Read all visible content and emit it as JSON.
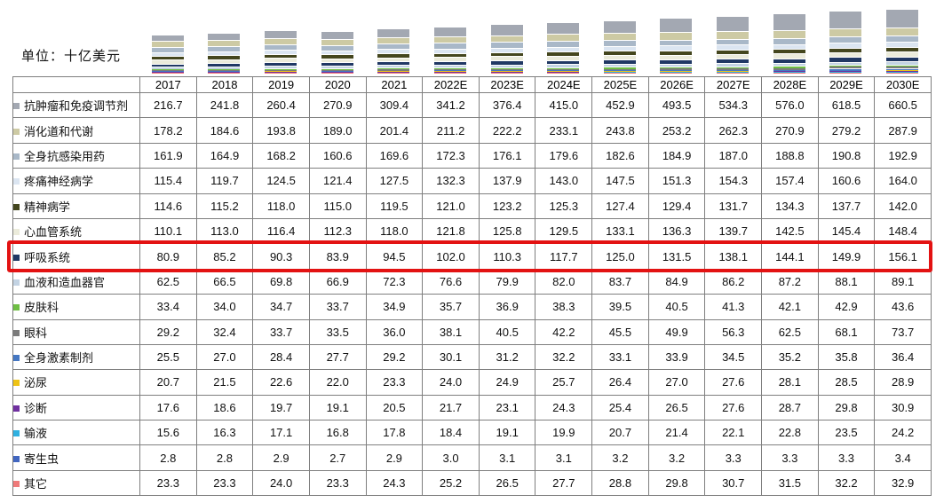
{
  "unit_label": "单位：十亿美元",
  "highlight": {
    "row": "呼吸系统",
    "color": "#e31212"
  },
  "chart_data": {
    "type": "table",
    "subtype": "data-table-with-mini-stacked-bar-chart",
    "title": "",
    "unit": "十亿美元",
    "value_format": "one-decimal",
    "legend_position": "row-labels",
    "columns": [
      "2017",
      "2018",
      "2019",
      "2020",
      "2021",
      "2022E",
      "2023E",
      "2024E",
      "2025E",
      "2026E",
      "2027E",
      "2028E",
      "2029E",
      "2030E"
    ],
    "series": [
      {
        "name": "抗肿瘤和免疫调节剂",
        "color": "#a3a8b2",
        "values": [
          216.7,
          241.8,
          260.4,
          270.9,
          309.4,
          341.2,
          376.4,
          415.0,
          452.9,
          493.5,
          534.3,
          576.0,
          618.5,
          660.5
        ]
      },
      {
        "name": "消化道和代谢",
        "color": "#cdcaa4",
        "values": [
          178.2,
          184.6,
          193.8,
          189.0,
          201.4,
          211.2,
          222.2,
          233.1,
          243.8,
          253.2,
          262.3,
          270.9,
          279.2,
          287.9
        ]
      },
      {
        "name": "全身抗感染用药",
        "color": "#a9b8c8",
        "values": [
          161.9,
          164.9,
          168.2,
          160.6,
          169.6,
          172.3,
          176.1,
          179.6,
          182.6,
          184.9,
          187.0,
          188.8,
          190.8,
          192.9
        ]
      },
      {
        "name": "疼痛神经病学",
        "color": "#dbe5f1",
        "values": [
          115.4,
          119.7,
          124.5,
          121.4,
          127.5,
          132.3,
          137.9,
          143.0,
          147.5,
          151.3,
          154.3,
          157.4,
          160.6,
          164.0
        ]
      },
      {
        "name": "精神病学",
        "color": "#44461e",
        "values": [
          114.6,
          115.2,
          118.0,
          115.0,
          119.5,
          121.0,
          123.2,
          125.3,
          127.4,
          129.4,
          131.7,
          134.3,
          137.7,
          142.0
        ]
      },
      {
        "name": "心血管系统",
        "color": "#ebebdb",
        "values": [
          110.1,
          113.0,
          116.4,
          112.3,
          118.0,
          121.8,
          125.8,
          129.5,
          133.1,
          136.3,
          139.7,
          142.5,
          145.4,
          148.4
        ]
      },
      {
        "name": "呼吸系统",
        "color": "#203864",
        "highlighted": true,
        "values": [
          80.9,
          85.2,
          90.3,
          83.9,
          94.5,
          102.0,
          110.3,
          117.7,
          125.0,
          131.5,
          138.1,
          144.1,
          149.9,
          156.1
        ]
      },
      {
        "name": "血液和造血器官",
        "color": "#c3d3e3",
        "values": [
          62.5,
          66.5,
          69.8,
          66.9,
          72.3,
          76.6,
          79.9,
          82.0,
          83.7,
          84.9,
          86.2,
          87.2,
          88.1,
          89.1
        ]
      },
      {
        "name": "皮肤科",
        "color": "#6fbf44",
        "values": [
          33.4,
          34.0,
          34.7,
          33.7,
          34.9,
          35.7,
          36.9,
          38.3,
          39.5,
          40.5,
          41.3,
          42.1,
          42.9,
          43.6
        ]
      },
      {
        "name": "眼科",
        "color": "#7b7b7b",
        "values": [
          29.2,
          32.4,
          33.7,
          33.5,
          36.0,
          38.1,
          40.5,
          42.2,
          45.5,
          49.9,
          56.3,
          62.5,
          68.1,
          73.7
        ]
      },
      {
        "name": "全身激素制剂",
        "color": "#4577c2",
        "values": [
          25.5,
          27.0,
          28.4,
          27.7,
          29.2,
          30.1,
          31.2,
          32.2,
          33.1,
          33.9,
          34.5,
          35.2,
          35.8,
          36.4
        ]
      },
      {
        "name": "泌尿",
        "color": "#eec315",
        "values": [
          20.7,
          21.5,
          22.6,
          22.0,
          23.3,
          24.0,
          24.9,
          25.7,
          26.4,
          27.0,
          27.6,
          28.1,
          28.5,
          28.9
        ]
      },
      {
        "name": "诊断",
        "color": "#7030a0",
        "values": [
          17.6,
          18.6,
          19.7,
          19.1,
          20.5,
          21.7,
          23.1,
          24.3,
          25.4,
          26.5,
          27.6,
          28.7,
          29.8,
          30.9
        ]
      },
      {
        "name": "输液",
        "color": "#2fb0e0",
        "values": [
          15.6,
          16.3,
          17.1,
          16.8,
          17.8,
          18.4,
          19.1,
          19.9,
          20.7,
          21.4,
          22.1,
          22.8,
          23.5,
          24.2
        ]
      },
      {
        "name": "寄生虫",
        "color": "#4166c0",
        "values": [
          2.8,
          2.8,
          2.9,
          2.7,
          2.9,
          3.0,
          3.1,
          3.1,
          3.2,
          3.2,
          3.3,
          3.3,
          3.3,
          3.4
        ]
      },
      {
        "name": "其它",
        "color": "#ef7b7b",
        "values": [
          23.3,
          23.3,
          24.0,
          23.3,
          24.3,
          25.2,
          26.5,
          27.7,
          28.8,
          29.8,
          30.7,
          31.5,
          32.2,
          32.9
        ]
      }
    ]
  }
}
